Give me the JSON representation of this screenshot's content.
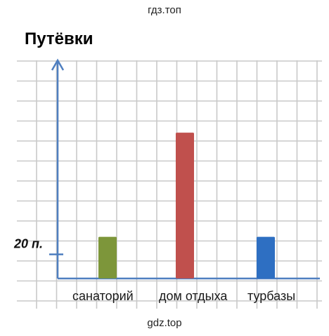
{
  "watermarks": {
    "top": "гдз.топ",
    "bottom": "gdz.top"
  },
  "chart_data": {
    "type": "bar",
    "title": "Путёвки",
    "xlabel": "",
    "ylabel": "",
    "categories": [
      "санаторий",
      "дом отдыха",
      "турбазы"
    ],
    "values": [
      20,
      70,
      20
    ],
    "colors": [
      "#7d963a",
      "#c0504d",
      "#2e6fc2"
    ],
    "y_tick_label": "20 п.",
    "y_tick_value": 20,
    "ylim": [
      0,
      100
    ],
    "grid": true,
    "axis_color": "#4f7fc0"
  }
}
